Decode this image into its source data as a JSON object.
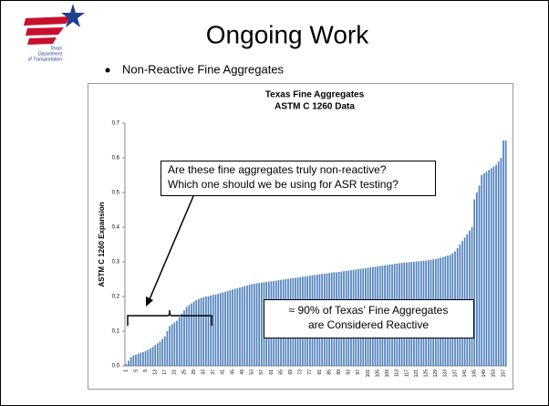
{
  "logo": {
    "lines": [
      "Texas",
      "Department",
      "of Transportation"
    ]
  },
  "slide": {
    "title": "Ongoing Work",
    "bullet": "Non-Reactive Fine Aggregates"
  },
  "chart_data": {
    "type": "bar",
    "title": [
      "Texas Fine Aggregates",
      "ASTM C 1260 Data"
    ],
    "y_label": "ASTM C 1260 Expansion",
    "color": "#4f81bd",
    "ylim": [
      0,
      0.7
    ],
    "yticks": [
      {
        "value": 0,
        "label": "0.0"
      },
      0.1,
      0.2,
      0.3,
      0.4,
      0.5,
      0.6,
      0.7
    ],
    "categories": [
      1,
      null,
      null,
      null,
      5,
      null,
      null,
      null,
      9,
      null,
      null,
      null,
      13,
      null,
      null,
      null,
      17,
      null,
      null,
      null,
      21,
      null,
      null,
      null,
      25,
      null,
      null,
      null,
      29,
      null,
      null,
      null,
      33,
      null,
      null,
      null,
      37,
      null,
      null,
      null,
      41,
      null,
      null,
      null,
      45,
      null,
      null,
      null,
      49,
      null,
      null,
      null,
      53,
      null,
      null,
      null,
      57,
      null,
      null,
      null,
      61,
      null,
      null,
      null,
      65,
      null,
      null,
      null,
      69,
      null,
      null,
      null,
      73,
      null,
      null,
      null,
      77,
      null,
      null,
      null,
      81,
      null,
      null,
      null,
      85,
      null,
      null,
      null,
      89,
      null,
      null,
      null,
      93,
      null,
      null,
      null,
      97,
      null,
      null,
      null,
      101,
      null,
      null,
      null,
      105,
      null,
      null,
      null,
      109,
      null,
      null,
      null,
      113,
      null,
      null,
      null,
      117,
      null,
      null,
      null,
      121,
      null,
      null,
      null,
      125,
      null,
      null,
      null,
      129,
      null,
      null,
      null,
      133,
      null,
      null,
      null,
      137,
      null,
      null,
      null,
      141,
      null,
      null,
      null,
      145,
      null,
      null,
      null,
      149,
      null,
      null,
      null,
      153,
      null,
      null,
      null,
      157,
      null
    ],
    "values": [
      0.005,
      0.015,
      0.025,
      0.03,
      0.032,
      0.035,
      0.038,
      0.04,
      0.043,
      0.046,
      0.05,
      0.055,
      0.06,
      0.065,
      0.07,
      0.078,
      0.085,
      0.1,
      0.115,
      0.12,
      0.125,
      0.13,
      0.14,
      0.15,
      0.16,
      0.17,
      0.175,
      0.18,
      0.185,
      0.19,
      0.193,
      0.196,
      0.198,
      0.2,
      0.201,
      0.203,
      0.205,
      0.206,
      0.208,
      0.21,
      0.212,
      0.214,
      0.216,
      0.218,
      0.22,
      0.222,
      0.224,
      0.226,
      0.228,
      0.23,
      0.232,
      0.234,
      0.236,
      0.237,
      0.238,
      0.239,
      0.24,
      0.241,
      0.242,
      0.243,
      0.244,
      0.245,
      0.246,
      0.247,
      0.248,
      0.249,
      0.25,
      0.251,
      0.252,
      0.253,
      0.254,
      0.255,
      0.256,
      0.257,
      0.258,
      0.259,
      0.26,
      0.261,
      0.262,
      0.263,
      0.264,
      0.265,
      0.266,
      0.267,
      0.268,
      0.269,
      0.27,
      0.27,
      0.271,
      0.272,
      0.273,
      0.274,
      0.275,
      0.276,
      0.277,
      0.278,
      0.279,
      0.28,
      0.281,
      0.282,
      0.283,
      0.284,
      0.285,
      0.286,
      0.287,
      0.288,
      0.289,
      0.29,
      0.291,
      0.292,
      0.293,
      0.294,
      0.295,
      0.296,
      0.297,
      0.298,
      0.298,
      0.299,
      0.3,
      0.3,
      0.301,
      0.302,
      0.302,
      0.303,
      0.304,
      0.305,
      0.306,
      0.307,
      0.308,
      0.31,
      0.312,
      0.314,
      0.316,
      0.318,
      0.32,
      0.325,
      0.33,
      0.34,
      0.35,
      0.36,
      0.37,
      0.38,
      0.39,
      0.4,
      0.48,
      0.5,
      0.52,
      0.55,
      0.555,
      0.56,
      0.565,
      0.57,
      0.575,
      0.58,
      0.59,
      0.6,
      0.65,
      0.65
    ],
    "annotations": [
      {
        "lines": [
          "Are these fine aggregates truly non-reactive?",
          "Which one should we be using for ASR testing?"
        ]
      },
      {
        "lines": [
          "≈ 90% of Texas’ Fine Aggregates",
          "are Considered Reactive"
        ]
      }
    ]
  }
}
